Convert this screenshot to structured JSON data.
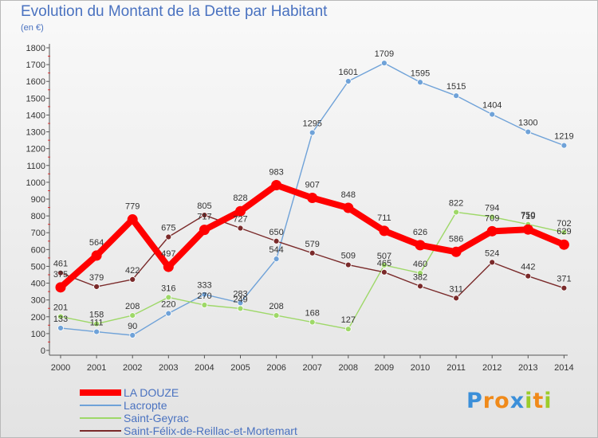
{
  "chart_data": {
    "type": "line",
    "title": "Evolution du Montant de la Dette par Habitant",
    "subtitle": "(en €)",
    "xlabel": "",
    "ylabel": "",
    "x": [
      "2000",
      "2001",
      "2002",
      "2003",
      "2004",
      "2005",
      "2006",
      "2007",
      "2008",
      "2009",
      "2010",
      "2011",
      "2012",
      "2013",
      "2014"
    ],
    "ylim": [
      0,
      1800
    ],
    "yticks": [
      0,
      100,
      200,
      300,
      400,
      500,
      600,
      700,
      800,
      900,
      1000,
      1100,
      1200,
      1300,
      1400,
      1500,
      1600,
      1700,
      1800
    ],
    "grid": false,
    "legend_position": "bottom-left",
    "series": [
      {
        "name": "LA DOUZE",
        "color": "#ff0000",
        "values": [
          375,
          564,
          779,
          497,
          717,
          828,
          983,
          907,
          848,
          711,
          626,
          586,
          709,
          719,
          629
        ]
      },
      {
        "name": "Lacropte",
        "color": "#6fa2d8",
        "values": [
          133,
          111,
          90,
          220,
          333,
          283,
          544,
          1295,
          1601,
          1709,
          1595,
          1515,
          1404,
          1300,
          1219
        ]
      },
      {
        "name": "Saint-Geyrac",
        "color": "#9ed868",
        "values": [
          201,
          158,
          208,
          316,
          270,
          249,
          208,
          168,
          127,
          507,
          460,
          822,
          794,
          750,
          702
        ]
      },
      {
        "name": "Saint-Félix-de-Reillac-et-Mortemart",
        "color": "#7a2a2a",
        "values": [
          461,
          379,
          422,
          675,
          805,
          727,
          650,
          579,
          509,
          465,
          382,
          311,
          524,
          442,
          371
        ]
      }
    ]
  },
  "logo": {
    "letters": [
      "P",
      "r",
      "o",
      "x",
      "i",
      "t",
      "i"
    ],
    "colors": [
      "#3b8fd9",
      "#f08a1a",
      "#f08a1a",
      "#3b8fd9",
      "#9ccc2a",
      "#f08a1a",
      "#9ccc2a"
    ]
  }
}
